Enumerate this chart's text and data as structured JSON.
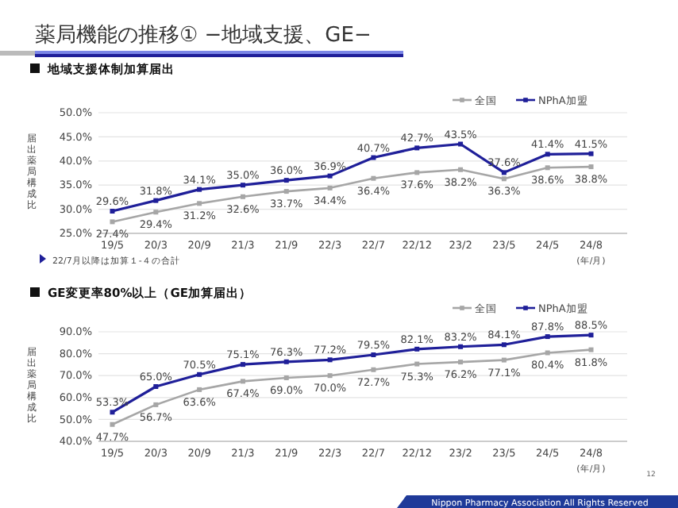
{
  "chart_data": [
    {
      "type": "line",
      "title": "薬局機能の推移① −地域支援、GE−",
      "subtitle": "地域支援体制加算届出",
      "ylabel": "届出薬局構成比",
      "xlabel": "(年/月)",
      "categories": [
        "19/5",
        "20/3",
        "20/9",
        "21/3",
        "21/9",
        "22/3",
        "22/7",
        "22/12",
        "23/2",
        "23/5",
        "24/5",
        "24/8"
      ],
      "series": [
        {
          "name": "全国",
          "color": "#a6a6a6",
          "values": [
            27.4,
            29.4,
            31.2,
            32.6,
            33.7,
            34.4,
            36.4,
            37.6,
            38.2,
            36.3,
            38.6,
            38.8
          ],
          "value_labels": [
            "27.4%",
            "29.4%",
            "31.2%",
            "32.6%",
            "33.7%",
            "34.4%",
            "36.4%",
            "37.6%",
            "38.2%",
            "36.3%",
            "38.6%",
            "38.8%"
          ]
        },
        {
          "name": "NPhA加盟",
          "color": "#1f1f99",
          "values": [
            29.6,
            31.8,
            34.1,
            35.0,
            36.0,
            36.9,
            40.7,
            42.7,
            43.5,
            37.6,
            41.4,
            41.5
          ],
          "value_labels": [
            "29.6%",
            "31.8%",
            "34.1%",
            "35.0%",
            "36.0%",
            "36.9%",
            "40.7%",
            "42.7%",
            "43.5%",
            "37.6%",
            "41.4%",
            "41.5%"
          ]
        }
      ],
      "ylim": [
        25,
        50
      ],
      "yticks": [
        {
          "value": 25,
          "label": "25.0%"
        },
        {
          "value": 30,
          "label": "30.0%"
        },
        {
          "value": 35,
          "label": "35.0%"
        },
        {
          "value": 40,
          "label": "40.0%"
        },
        {
          "value": 45,
          "label": "45.0%"
        },
        {
          "value": 50,
          "label": "50.0%"
        }
      ],
      "grid": "y",
      "legend": "top right",
      "marker": "square",
      "line_style": "solid",
      "annotations": [
        "22/7月以降は加算１-４の合計"
      ]
    },
    {
      "type": "line",
      "title": "GE変更率80%以上（GE加算届出）",
      "ylabel": "届出薬局構成比",
      "xlabel": "(年/月)",
      "categories": [
        "19/5",
        "20/3",
        "20/9",
        "21/3",
        "21/9",
        "22/3",
        "22/7",
        "22/12",
        "23/2",
        "23/5",
        "24/5",
        "24/8"
      ],
      "series": [
        {
          "name": "全国",
          "color": "#a6a6a6",
          "values": [
            47.7,
            56.7,
            63.6,
            67.4,
            69.0,
            70.0,
            72.7,
            75.3,
            76.2,
            77.1,
            80.4,
            81.8
          ],
          "value_labels": [
            "47.7%",
            "56.7%",
            "63.6%",
            "67.4%",
            "69.0%",
            "70.0%",
            "72.7%",
            "75.3%",
            "76.2%",
            "77.1%",
            "80.4%",
            "81.8%"
          ]
        },
        {
          "name": "NPhA加盟",
          "color": "#1f1f99",
          "values": [
            53.3,
            65.0,
            70.5,
            75.1,
            76.3,
            77.2,
            79.5,
            82.1,
            83.2,
            84.1,
            87.8,
            88.5
          ],
          "value_labels": [
            "53.3%",
            "65.0%",
            "70.5%",
            "75.1%",
            "76.3%",
            "77.2%",
            "79.5%",
            "82.1%",
            "83.2%",
            "84.1%",
            "87.8%",
            "88.5%"
          ]
        }
      ],
      "ylim": [
        40,
        90
      ],
      "yticks": [
        {
          "value": 40,
          "label": "40.0%"
        },
        {
          "value": 50,
          "label": "50.0%"
        },
        {
          "value": 60,
          "label": "60.0%"
        },
        {
          "value": 70,
          "label": "70.0%"
        },
        {
          "value": 80,
          "label": "80.0%"
        },
        {
          "value": 90,
          "label": "90.0%"
        }
      ],
      "grid": "y",
      "legend": "top right",
      "marker": "square",
      "line_style": "solid",
      "annotations": [
        "12",
        "Nippon Pharmacy Association All Rights Reserved"
      ]
    }
  ]
}
